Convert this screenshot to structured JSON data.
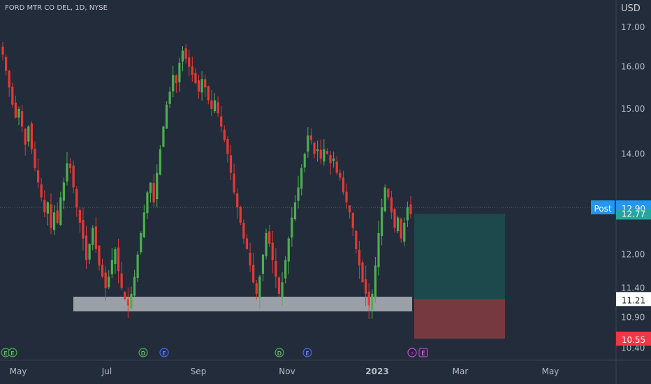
{
  "header": {
    "title": "FORD MTR CO DEL, 1D, NYSE",
    "currency": "USD"
  },
  "price_labels": {
    "post_label": "Post",
    "post_price": "12.90",
    "last_price": "12.77",
    "target_price": "11.21",
    "stop_price": "10.55"
  },
  "event_markers": [
    "E",
    "E",
    "D",
    "E",
    "D",
    "E"
  ],
  "colors": {
    "background": "#232c3a",
    "up": "#4caf50",
    "down": "#e53935",
    "support_zone": "#b0b4bc",
    "profit_zone": "#1e4b4d",
    "loss_zone": "#7b3a3f",
    "post_badge": "#2196f3",
    "last_badge": "#26a69a",
    "stop_badge": "#f23645"
  },
  "chart_data": {
    "type": "candlestick",
    "title": "FORD MTR CO DEL, 1D, NYSE",
    "ylabel": "USD",
    "yscale": "log",
    "ylim": [
      10.25,
      17.2
    ],
    "y_ticks": [
      17.0,
      16.0,
      15.0,
      14.0,
      12.0,
      11.4,
      10.9,
      10.4
    ],
    "x_ticks": [
      "May",
      "Jul",
      "Sep",
      "Nov",
      "2023",
      "Mar",
      "May"
    ],
    "series_close": [
      16.3,
      15.9,
      15.5,
      15.1,
      14.8,
      15.0,
      14.6,
      14.2,
      14.6,
      14.1,
      13.7,
      13.4,
      13.1,
      12.8,
      13.0,
      12.5,
      12.8,
      12.6,
      13.1,
      13.4,
      13.8,
      13.7,
      13.3,
      12.9,
      12.6,
      12.3,
      11.9,
      12.2,
      12.5,
      12.1,
      11.8,
      11.6,
      11.4,
      11.6,
      11.9,
      12.1,
      11.7,
      11.4,
      11.2,
      11.1,
      11.3,
      11.6,
      12.0,
      12.4,
      12.8,
      13.2,
      13.4,
      13.0,
      13.6,
      14.1,
      14.6,
      15.1,
      15.4,
      15.8,
      15.6,
      16.1,
      16.4,
      16.2,
      16.0,
      15.8,
      15.6,
      15.4,
      15.7,
      15.5,
      15.2,
      15.0,
      15.2,
      14.9,
      14.6,
      14.3,
      14.0,
      13.6,
      13.2,
      12.9,
      12.6,
      12.3,
      12.1,
      11.8,
      11.5,
      11.3,
      11.6,
      12.0,
      12.4,
      12.2,
      11.9,
      11.6,
      11.3,
      11.5,
      11.9,
      12.3,
      12.7,
      13.0,
      13.3,
      13.7,
      14.0,
      14.4,
      14.3,
      14.0,
      14.1,
      13.9,
      14.1,
      14.0,
      13.8,
      13.9,
      13.6,
      13.5,
      13.2,
      13.0,
      12.8,
      12.5,
      12.1,
      11.8,
      11.5,
      11.3,
      11.1,
      11.3,
      11.8,
      12.4,
      12.9,
      13.3,
      13.1,
      12.8,
      12.5,
      12.7,
      12.3,
      12.6,
      12.9,
      12.77
    ],
    "support_zone": [
      11.0,
      11.25
    ],
    "position": {
      "entry": 12.77,
      "target": 11.21,
      "stop": 10.55
    },
    "post_market_price": 12.9
  }
}
